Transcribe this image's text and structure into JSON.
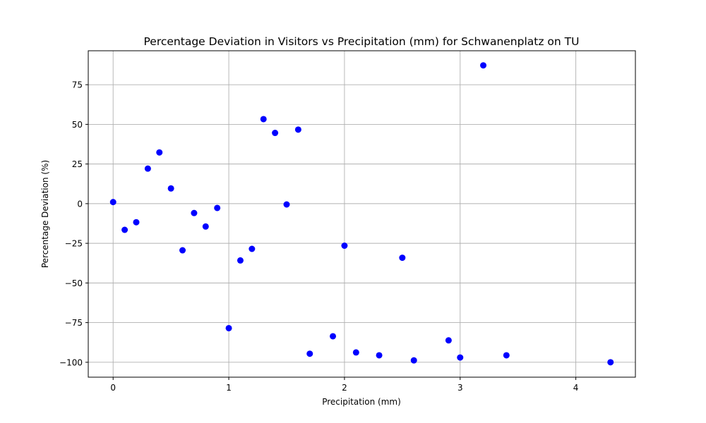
{
  "chart_data": {
    "type": "scatter",
    "title": "Percentage Deviation in Visitors vs Precipitation (mm) for Schwanenplatz on TU",
    "xlabel": "Precipitation (mm)",
    "ylabel": "Percentage Deviation (%)",
    "xlim": [
      -0.215,
      4.515
    ],
    "ylim": [
      -109.4,
      96.4
    ],
    "xticks": [
      0,
      1,
      2,
      3,
      4
    ],
    "yticks": [
      75,
      50,
      25,
      0,
      -25,
      -50,
      -75,
      -100
    ],
    "xtick_labels": [
      "0",
      "1",
      "2",
      "3",
      "4"
    ],
    "ytick_labels": [
      "75",
      "50",
      "25",
      "0",
      "−25",
      "−50",
      "−75",
      "−100"
    ],
    "grid": true,
    "marker_color": "#0000ff",
    "points": [
      {
        "x": 0.0,
        "y": 1
      },
      {
        "x": 0.1,
        "y": -16.5
      },
      {
        "x": 0.2,
        "y": -11.7
      },
      {
        "x": 0.3,
        "y": 22.1
      },
      {
        "x": 0.4,
        "y": 32.3
      },
      {
        "x": 0.5,
        "y": 9.6
      },
      {
        "x": 0.6,
        "y": -29.4
      },
      {
        "x": 0.7,
        "y": -5.9
      },
      {
        "x": 0.8,
        "y": -14.4
      },
      {
        "x": 0.9,
        "y": -2.7
      },
      {
        "x": 1.0,
        "y": -78.5
      },
      {
        "x": 1.1,
        "y": -35.8
      },
      {
        "x": 1.2,
        "y": -28.5
      },
      {
        "x": 1.3,
        "y": 53.3
      },
      {
        "x": 1.4,
        "y": 44.6
      },
      {
        "x": 1.5,
        "y": -0.5
      },
      {
        "x": 1.6,
        "y": 46.7
      },
      {
        "x": 1.7,
        "y": -94.6
      },
      {
        "x": 1.9,
        "y": -83.6
      },
      {
        "x": 2.0,
        "y": -26.5
      },
      {
        "x": 2.1,
        "y": -93.8
      },
      {
        "x": 2.3,
        "y": -95.6
      },
      {
        "x": 2.5,
        "y": -34.1
      },
      {
        "x": 2.6,
        "y": -98.8
      },
      {
        "x": 2.9,
        "y": -86.2
      },
      {
        "x": 3.0,
        "y": -97.0
      },
      {
        "x": 3.2,
        "y": 87.2
      },
      {
        "x": 3.4,
        "y": -95.6
      },
      {
        "x": 4.3,
        "y": -100.0
      }
    ]
  }
}
